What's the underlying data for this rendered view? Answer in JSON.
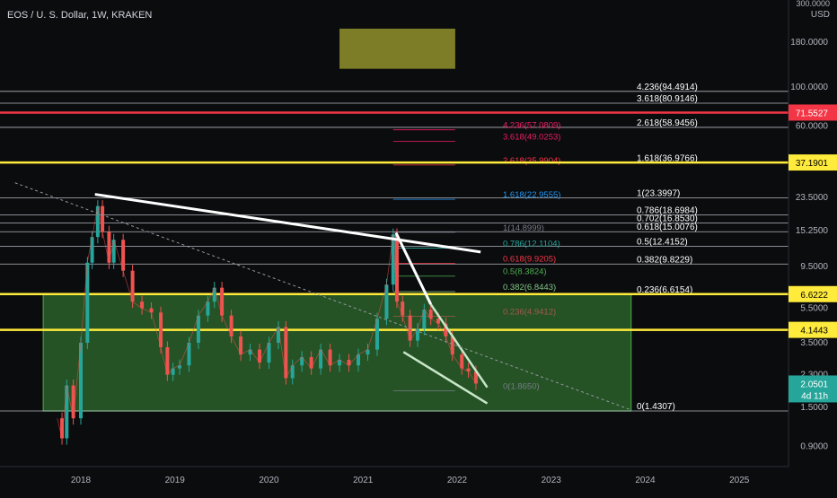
{
  "header": {
    "title": "EOS / U. S. Dollar, 1W, KRAKEN",
    "top_price": "300.0000",
    "currency": "USD"
  },
  "colors": {
    "background": "#0b0c0e",
    "candle_up": "#26a69a",
    "candle_down": "#ef5350",
    "box_fill": "#2f6b2e",
    "yellow_line": "#ffeb3b",
    "red_line": "#f23645",
    "olive_box": "#8a8a2a"
  },
  "chart_data": {
    "type": "candlestick",
    "scale": "log",
    "ylim": [
      0.8,
      300
    ],
    "xlim": [
      2017.3,
      2025.6
    ],
    "x_ticks": [
      "2018",
      "2019",
      "2020",
      "2021",
      "2022",
      "2023",
      "2024",
      "2025"
    ],
    "y_ticks": [
      "180.0000",
      "100.0000",
      "60.0000",
      "23.5000",
      "15.2500",
      "9.5000",
      "5.5000",
      "3.5000",
      "2.3000",
      "1.5000",
      "0.9000"
    ],
    "price_badges": [
      {
        "label": "71.5527",
        "value": 71.5527,
        "color": "#f23645",
        "text_color": "#ffffff"
      },
      {
        "label": "37.1901",
        "value": 37.1901,
        "color": "#ffeb3b",
        "text_color": "#000000"
      },
      {
        "label": "6.6222",
        "value": 6.6222,
        "color": "#ffeb3b",
        "text_color": "#000000"
      },
      {
        "label": "4.1443",
        "value": 4.1443,
        "color": "#ffeb3b",
        "text_color": "#000000"
      },
      {
        "label": "2.0501",
        "value": 2.0501,
        "color": "#26a69a",
        "text_color": "#ffffff",
        "sub": "4d 11h"
      }
    ],
    "fib_main": [
      {
        "label": "4.236(94.4914)",
        "value": 94.4914
      },
      {
        "label": "3.618(80.9146)",
        "value": 80.9146
      },
      {
        "label": "2.618(58.9456)",
        "value": 58.9456
      },
      {
        "label": "1.618(36.9766)",
        "value": 36.9766
      },
      {
        "label": "1(23.3997)",
        "value": 23.3997
      },
      {
        "label": "0.786(18.6984)",
        "value": 18.6984
      },
      {
        "label": "0.702(16.8530)",
        "value": 16.853
      },
      {
        "label": "0.618(15.0076)",
        "value": 15.0076
      },
      {
        "label": "0.5(12.4152)",
        "value": 12.4152
      },
      {
        "label": "0.382(9.8229)",
        "value": 9.8229
      },
      {
        "label": "0.236(6.6154)",
        "value": 6.6154
      },
      {
        "label": "0(1.4307)",
        "value": 1.4307
      }
    ],
    "fib_secondary": [
      {
        "label": "4.236(57.0809)",
        "value": 57.0809,
        "color": "#e91e63"
      },
      {
        "label": "3.618(49.0253)",
        "value": 49.0253,
        "color": "#e91e63"
      },
      {
        "label": "2.618(35.9904)",
        "value": 35.9904,
        "color": "#f23645"
      },
      {
        "label": "1.618(22.9555)",
        "value": 22.9555,
        "color": "#2196f3"
      },
      {
        "label": "1(14.8999)",
        "value": 14.8999,
        "color": "#787b86"
      },
      {
        "label": "0.786(12.1104)",
        "value": 12.1104,
        "color": "#26a69a"
      },
      {
        "label": "0.618(9.9205)",
        "value": 9.9205,
        "color": "#f23645"
      },
      {
        "label": "0.5(8.3824)",
        "value": 8.3824,
        "color": "#4caf50"
      },
      {
        "label": "0.382(6.8443)",
        "value": 6.8443,
        "color": "#81c784"
      },
      {
        "label": "0.236(4.9412)",
        "value": 4.9412,
        "color": "#a05a4a"
      },
      {
        "label": "0(1.8650)",
        "value": 1.865,
        "color": "#787b86"
      }
    ],
    "horizontal_lines": [
      {
        "value": 71.5527,
        "color": "#f23645"
      },
      {
        "value": 37.1901,
        "color": "#ffeb3b"
      },
      {
        "value": 6.6222,
        "color": "#ffeb3b"
      },
      {
        "value": 4.1443,
        "color": "#ffeb3b"
      }
    ],
    "range_box": {
      "x0": 2017.6,
      "x1": 2023.85,
      "y0": 1.43,
      "y1": 6.62
    },
    "olive_box": {
      "x0": 2020.75,
      "x1": 2021.98,
      "y0": 127,
      "y1": 215
    },
    "trendlines": [
      {
        "x0": 2018.15,
        "y0": 24.5,
        "x1": 2022.25,
        "y1": 11.5,
        "color": "#ffffff",
        "width": 3,
        "dash": false
      },
      {
        "x0": 2021.35,
        "y0": 14.8,
        "x1": 2021.72,
        "y1": 5.8,
        "color": "#ffffff",
        "width": 3,
        "dash": false
      },
      {
        "x0": 2021.72,
        "y0": 5.8,
        "x1": 2022.32,
        "y1": 1.95,
        "color": "#c8e6c9",
        "width": 2.5,
        "dash": false
      },
      {
        "x0": 2021.43,
        "y0": 3.1,
        "x1": 2022.32,
        "y1": 1.58,
        "color": "#c8e6c9",
        "width": 2.5,
        "dash": false
      },
      {
        "x0": 2017.3,
        "y0": 28.5,
        "x1": 2023.85,
        "y1": 1.45,
        "color": "#9598a1",
        "width": 1,
        "dash": true
      }
    ],
    "price_path": [
      [
        2017.75,
        1.3
      ],
      [
        2017.8,
        1.0
      ],
      [
        2017.85,
        2.0
      ],
      [
        2017.92,
        1.3
      ],
      [
        2018.0,
        3.5
      ],
      [
        2018.07,
        10.0
      ],
      [
        2018.12,
        14.0
      ],
      [
        2018.18,
        21.0
      ],
      [
        2018.23,
        15.0
      ],
      [
        2018.3,
        10.0
      ],
      [
        2018.35,
        13.5
      ],
      [
        2018.45,
        9.0
      ],
      [
        2018.55,
        6.0
      ],
      [
        2018.65,
        5.5
      ],
      [
        2018.75,
        5.2
      ],
      [
        2018.85,
        3.3
      ],
      [
        2018.92,
        2.3
      ],
      [
        2018.98,
        2.5
      ],
      [
        2019.05,
        2.6
      ],
      [
        2019.15,
        3.5
      ],
      [
        2019.25,
        5.0
      ],
      [
        2019.35,
        6.0
      ],
      [
        2019.42,
        7.2
      ],
      [
        2019.5,
        5.0
      ],
      [
        2019.6,
        3.8
      ],
      [
        2019.7,
        3.0
      ],
      [
        2019.8,
        3.2
      ],
      [
        2019.9,
        2.7
      ],
      [
        2020.0,
        3.5
      ],
      [
        2020.1,
        4.3
      ],
      [
        2020.18,
        2.2
      ],
      [
        2020.25,
        2.6
      ],
      [
        2020.35,
        2.9
      ],
      [
        2020.45,
        2.5
      ],
      [
        2020.55,
        3.2
      ],
      [
        2020.65,
        2.6
      ],
      [
        2020.75,
        2.8
      ],
      [
        2020.85,
        2.6
      ],
      [
        2020.95,
        3.0
      ],
      [
        2021.05,
        3.2
      ],
      [
        2021.15,
        4.8
      ],
      [
        2021.25,
        7.5
      ],
      [
        2021.32,
        14.5
      ],
      [
        2021.36,
        6.0
      ],
      [
        2021.42,
        5.0
      ],
      [
        2021.5,
        3.6
      ],
      [
        2021.58,
        4.2
      ],
      [
        2021.65,
        5.4
      ],
      [
        2021.72,
        4.8
      ],
      [
        2021.8,
        4.5
      ],
      [
        2021.88,
        3.8
      ],
      [
        2021.95,
        3.0
      ],
      [
        2022.05,
        2.5
      ],
      [
        2022.12,
        2.4
      ],
      [
        2022.2,
        2.05
      ]
    ]
  }
}
